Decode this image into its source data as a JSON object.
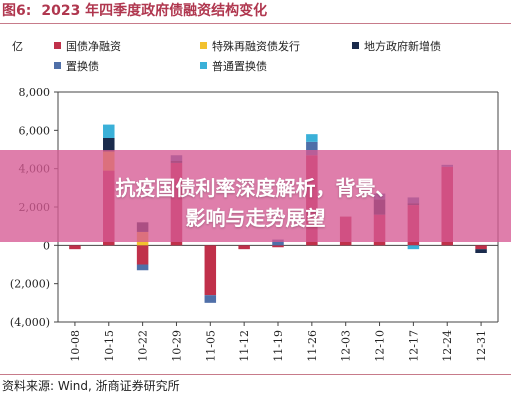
{
  "figure": {
    "label": "图6:",
    "title": "2023 年四季度政府债融资结构变化",
    "source": "资料来源:  Wind, 浙商证券研究所"
  },
  "overlay": {
    "line1": "抗疫国债利率深度解析，背景、",
    "line2": "影响与走势展望"
  },
  "chart_data": {
    "type": "bar",
    "stacked": true,
    "ylabel": "亿",
    "ylim": [
      -4000,
      8000
    ],
    "yticks": [
      -4000,
      -2000,
      0,
      2000,
      4000,
      6000,
      8000
    ],
    "ytick_labels": [
      "(4,000)",
      "(2,000)",
      "0",
      "2,000",
      "4,000",
      "6,000",
      "8,000"
    ],
    "grid": false,
    "legend_position": "top",
    "categories": [
      "10-08",
      "10-15",
      "10-22",
      "10-29",
      "11-05",
      "11-12",
      "11-19",
      "11-26",
      "12-03",
      "12-10",
      "12-17",
      "12-24",
      "12-31"
    ],
    "series": [
      {
        "name": "国债净融资",
        "color": "#c0304a",
        "values": [
          -200,
          3900,
          -1000,
          4300,
          -2600,
          -200,
          -100,
          4700,
          1500,
          1600,
          2100,
          4100,
          -200
        ]
      },
      {
        "name": "特殊再融资债发行",
        "color": "#f2c12e",
        "values": [
          0,
          1000,
          700,
          0,
          0,
          0,
          0,
          0,
          0,
          0,
          0,
          0,
          0
        ]
      },
      {
        "name": "地方政府新增债",
        "color": "#1a2b4c",
        "values": [
          0,
          700,
          500,
          100,
          0,
          0,
          0,
          0,
          0,
          800,
          100,
          0,
          -200
        ]
      },
      {
        "name": "置换债",
        "color": "#4f6fa8",
        "values": [
          0,
          0,
          -300,
          300,
          -400,
          0,
          300,
          700,
          0,
          300,
          300,
          100,
          0
        ]
      },
      {
        "name": "普通置换债",
        "color": "#3ab0d8",
        "values": [
          0,
          700,
          0,
          0,
          0,
          0,
          0,
          400,
          0,
          0,
          -200,
          0,
          0
        ]
      }
    ]
  }
}
